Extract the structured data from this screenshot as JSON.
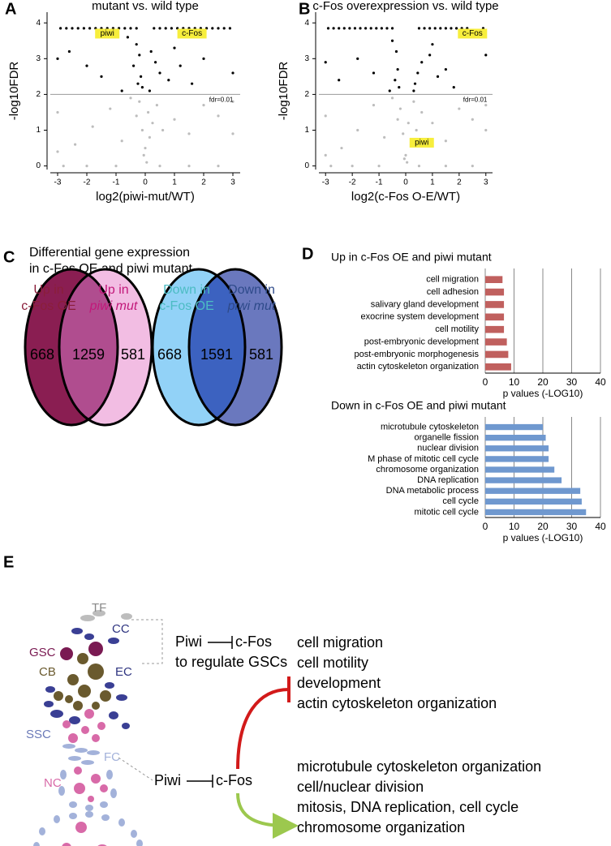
{
  "panel_labels": {
    "a": "A",
    "b": "B",
    "c": "C",
    "d": "D",
    "e": "E"
  },
  "chart_data": [
    {
      "type": "scatter",
      "title": "mutant vs. wild type",
      "xlabel": "log2(piwi-mut/WT)",
      "ylabel": "-log10FDR",
      "xlim": [
        -3.25,
        3.25
      ],
      "ylim": [
        -0.1,
        4.3
      ],
      "xticks": [
        -3,
        -2,
        -1,
        0,
        1,
        2,
        3
      ],
      "yticks": [
        0,
        1,
        2,
        3,
        4
      ],
      "threshold": {
        "y": 2,
        "label": "fdr=0.01",
        "label_x": 2.6
      },
      "annotations": [
        {
          "text": "piwi",
          "x": -1.3,
          "y": 3.7
        },
        {
          "text": "c-Fos",
          "x": 1.6,
          "y": 3.7
        }
      ],
      "series": [
        {
          "color": "#000000",
          "x": [
            -2.9,
            -2.7,
            -2.5,
            -2.3,
            -2.1,
            -1.9,
            -1.7,
            -1.5,
            -1.3,
            -1.1,
            -0.9,
            -0.7,
            -0.5,
            -0.3,
            0.3,
            0.5,
            0.7,
            0.9,
            1.1,
            1.3,
            1.5,
            1.7,
            1.9,
            2.1,
            2.3,
            2.5,
            2.7,
            2.9,
            -0.6,
            -0.3,
            -0.2,
            -0.4,
            -0.15,
            -0.25,
            -0.1,
            0.2,
            0.35,
            0.5,
            0.8,
            1.2,
            1.6,
            2.0,
            -1.5,
            -2.0,
            -2.6,
            -3.0,
            3.0,
            -0.8,
            0.15,
            1.0
          ],
          "y": [
            3.85,
            3.85,
            3.85,
            3.85,
            3.85,
            3.85,
            3.85,
            3.85,
            3.85,
            3.85,
            3.85,
            3.85,
            3.85,
            3.85,
            3.85,
            3.85,
            3.85,
            3.85,
            3.85,
            3.85,
            3.85,
            3.85,
            3.85,
            3.85,
            3.85,
            3.85,
            3.85,
            3.85,
            3.6,
            3.4,
            3.1,
            2.8,
            2.5,
            2.3,
            2.2,
            3.2,
            2.9,
            2.6,
            2.4,
            2.8,
            2.3,
            3.0,
            2.5,
            2.8,
            3.2,
            3.0,
            2.6,
            2.1,
            2.1,
            3.3
          ]
        },
        {
          "color": "#bdbdbd",
          "x": [
            0,
            -0.1,
            0.1,
            -0.2,
            0.15,
            0.25,
            -0.3,
            0.4,
            -0.5,
            0.6,
            -0.8,
            1.0,
            -1.2,
            1.5,
            -1.8,
            2.0,
            -2.4,
            2.5,
            -3.0,
            3.0,
            -3.0,
            3.0,
            0.05,
            -0.05,
            -2.0,
            -1.0,
            0.5,
            1.5,
            2.5,
            -2.8
          ],
          "y": [
            0.5,
            1.0,
            1.5,
            1.8,
            0.8,
            1.2,
            1.4,
            1.7,
            1.9,
            1.0,
            0.7,
            1.3,
            1.6,
            0.9,
            1.1,
            1.7,
            0.6,
            1.4,
            1.5,
            0.9,
            0.4,
            1.8,
            0.1,
            0.3,
            0,
            0,
            0,
            0,
            0,
            0
          ]
        }
      ]
    },
    {
      "type": "scatter",
      "title": "c-Fos overexpression vs. wild type",
      "xlabel": "log2(c-Fos O-E/WT)",
      "ylabel": "-log10FDR",
      "xlim": [
        -3.25,
        3.25
      ],
      "ylim": [
        -0.1,
        4.3
      ],
      "xticks": [
        -3,
        -2,
        -1,
        0,
        1,
        2,
        3
      ],
      "yticks": [
        0,
        1,
        2,
        3,
        4
      ],
      "threshold": {
        "y": 2,
        "label": "fdr=0.01",
        "label_x": 2.6
      },
      "annotations": [
        {
          "text": "c-Fos",
          "x": 2.5,
          "y": 3.7
        },
        {
          "text": "piwi",
          "x": 0.6,
          "y": 0.65
        }
      ],
      "series": [
        {
          "color": "#000000",
          "x": [
            -2.9,
            -2.7,
            -2.5,
            -2.3,
            -2.1,
            -1.9,
            -1.7,
            -1.5,
            -1.3,
            -1.1,
            -0.9,
            -0.7,
            -0.5,
            0.5,
            0.7,
            0.9,
            1.1,
            1.3,
            1.5,
            1.7,
            1.9,
            2.1,
            2.3,
            2.9,
            -0.5,
            -0.35,
            -0.3,
            -0.4,
            -0.25,
            0.35,
            0.45,
            0.6,
            0.9,
            1.2,
            1.5,
            1.8,
            -1.2,
            -1.8,
            -2.5,
            -3.0,
            3.0,
            0.3,
            -0.6,
            1.0
          ],
          "y": [
            3.85,
            3.85,
            3.85,
            3.85,
            3.85,
            3.85,
            3.85,
            3.85,
            3.85,
            3.85,
            3.85,
            3.85,
            3.85,
            3.85,
            3.85,
            3.85,
            3.85,
            3.85,
            3.85,
            3.85,
            3.85,
            3.85,
            3.85,
            3.85,
            3.5,
            3.2,
            2.7,
            2.4,
            2.2,
            2.3,
            2.6,
            2.9,
            3.1,
            2.5,
            2.7,
            2.2,
            2.6,
            3.0,
            2.4,
            2.9,
            3.1,
            2.1,
            2.1,
            3.4
          ]
        },
        {
          "color": "#bdbdbd",
          "x": [
            0,
            -0.1,
            0.1,
            -0.2,
            0.2,
            0.3,
            -0.3,
            0.4,
            -0.5,
            0.6,
            -0.8,
            1.0,
            -1.2,
            1.5,
            -1.8,
            2.0,
            -2.4,
            2.5,
            -3.0,
            3.0,
            -3.0,
            3.0,
            0.05,
            -0.05,
            -2.0,
            -1.0,
            0.5,
            1.5,
            2.5,
            -2.8
          ],
          "y": [
            0.3,
            0.9,
            1.2,
            1.6,
            0.6,
            1.8,
            1.3,
            1.0,
            1.9,
            1.5,
            0.8,
            1.2,
            1.7,
            0.7,
            1.0,
            1.6,
            0.5,
            1.3,
            1.4,
            1.0,
            0.3,
            1.7,
            0.1,
            0.2,
            0,
            0,
            0,
            0,
            0,
            0
          ]
        }
      ]
    },
    {
      "type": "barh",
      "title": "Up in c-Fos OE and piwi mutant",
      "xlabel": "p values (-LOG10)",
      "color": "#c0605e",
      "categories": [
        "cell migration",
        "cell adhesion",
        "salivary gland development",
        "exocrine system development",
        "cell motility",
        "post-embryonic development",
        "post-embryonic morphogenesis",
        "actin cytoskeleton organization"
      ],
      "values": [
        6,
        6.5,
        6.5,
        6.5,
        6.5,
        7.5,
        8,
        9
      ],
      "xlim": [
        0,
        40
      ],
      "xticks": [
        0,
        10,
        20,
        30,
        40
      ],
      "grid": true
    },
    {
      "type": "barh",
      "title": "Down in c-Fos OE and piwi mutant",
      "xlabel": "p values (-LOG10)",
      "color": "#6f98cf",
      "categories": [
        "microtubule cytoskeleton",
        "organelle fission",
        "nuclear division",
        "M phase of mitotic cell cycle",
        "chromosome organization",
        "DNA replication",
        "DNA metabolic process",
        "cell cycle",
        "mitotic cell cycle"
      ],
      "values": [
        20,
        21,
        22,
        22,
        24,
        26.5,
        33,
        33.5,
        35
      ],
      "xlim": [
        0,
        40
      ],
      "xticks": [
        0,
        10,
        20,
        30,
        40
      ],
      "grid": true
    }
  ],
  "venn": {
    "title": [
      "Differential gene expression",
      "in c-Fos OE and piwi mutant"
    ],
    "up": {
      "left_label": [
        "Up in",
        "c-Fos OE"
      ],
      "right_label": [
        "Up in",
        "piwi mut"
      ],
      "left": "668",
      "both": "1259",
      "right": "581"
    },
    "down": {
      "left_label": [
        "Down in",
        "c-Fos OE"
      ],
      "right_label": [
        "Down in",
        "piwi mut"
      ],
      "left": "668",
      "both": "1591",
      "right": "581"
    }
  },
  "diagram": {
    "cells": {
      "tf": "TF",
      "cc": "CC",
      "gsc": "GSC",
      "cb": "CB",
      "ec": "EC",
      "ssc": "SSC",
      "fc": "FC",
      "nc": "NC"
    },
    "upper": {
      "source": "Piwi",
      "target": "c-Fos",
      "note": "to regulate GSCs"
    },
    "lower": {
      "source": "Piwi",
      "target": "c-Fos"
    },
    "repressed": [
      "cell migration",
      "cell motility",
      "development",
      "actin cytoskeleton organization"
    ],
    "activated": [
      "microtubule cytoskeleton organization",
      "cell/nuclear division",
      "mitosis, DNA replication, cell cycle",
      "chromosome organization"
    ]
  }
}
